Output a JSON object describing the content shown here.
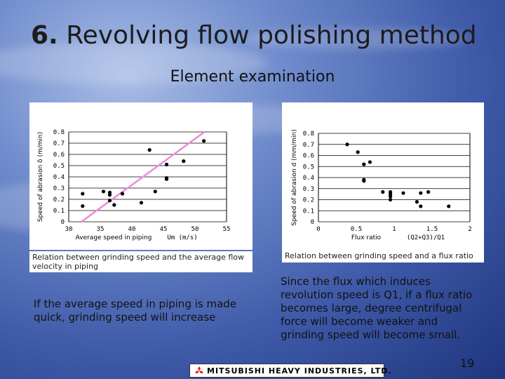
{
  "slide": {
    "title_num": "6.",
    "title_text": "Revolving flow polishing method",
    "subtitle": "Element examination",
    "left_caption": "Relation between grinding speed and the average flow velocity in piping",
    "right_caption": "Relation between grinding speed and a flux ratio",
    "left_text": "If the average speed in piping is made quick, grinding speed will increase",
    "right_text": "Since the flux which induces revolution speed is Q1, if a flux ratio becomes large, degree centrifugal force will become weaker and grinding speed will become small.",
    "logo_text": "MITSUBISHI HEAVY INDUSTRIES, LTD.",
    "page_number": "19",
    "colors": {
      "trend_line": "#f08ad8",
      "logo_mark": "#e21a1a"
    }
  },
  "chart_data": [
    {
      "type": "scatter",
      "title": "",
      "ylabel": "Speed of abrasion δ (m/min)",
      "xlabel": "Average speed in piping",
      "xlabel_symbol": "Um (m/s)",
      "xlim": [
        30,
        55
      ],
      "ylim": [
        0,
        0.8
      ],
      "x_ticks": [
        "30",
        "35",
        "40",
        "45",
        "50",
        "55"
      ],
      "y_ticks": [
        "0",
        "0.1",
        "0.2",
        "0.3",
        "0.4",
        "0.5",
        "0.6",
        "0.7",
        "0.8"
      ],
      "grid": "horizontal",
      "trend_line": {
        "x": [
          32,
          51.5
        ],
        "y": [
          0.0,
          0.8
        ]
      },
      "x": [
        32.2,
        32.2,
        35.5,
        36.5,
        36.5,
        36.5,
        37.2,
        38.5,
        41.5,
        42.8,
        43.7,
        45.5,
        45.5,
        45.5,
        48.2,
        51.4
      ],
      "y": [
        0.25,
        0.14,
        0.27,
        0.26,
        0.24,
        0.19,
        0.15,
        0.25,
        0.17,
        0.64,
        0.27,
        0.51,
        0.39,
        0.38,
        0.54,
        0.72
      ]
    },
    {
      "type": "scatter",
      "title": "",
      "ylabel": "Speed of abrasion d (mm/min)",
      "xlabel": "Flux ratio",
      "xlabel_symbol": "(Q2+Q3)/Q1",
      "xlim": [
        0,
        2
      ],
      "ylim": [
        0,
        0.8
      ],
      "x_ticks": [
        "0",
        "0.5",
        "1",
        "1.5",
        "2"
      ],
      "y_ticks": [
        "0",
        "0.1",
        "0.2",
        "0.3",
        "0.4",
        "0.5",
        "0.6",
        "0.7",
        "0.8"
      ],
      "grid": "horizontal",
      "x": [
        0.38,
        0.52,
        0.6,
        0.6,
        0.6,
        0.68,
        0.85,
        0.95,
        0.95,
        0.95,
        0.95,
        1.12,
        1.3,
        1.35,
        1.35,
        1.45,
        1.72
      ],
      "y": [
        0.7,
        0.63,
        0.52,
        0.38,
        0.37,
        0.54,
        0.27,
        0.27,
        0.25,
        0.23,
        0.2,
        0.26,
        0.18,
        0.26,
        0.14,
        0.27,
        0.14
      ]
    }
  ]
}
